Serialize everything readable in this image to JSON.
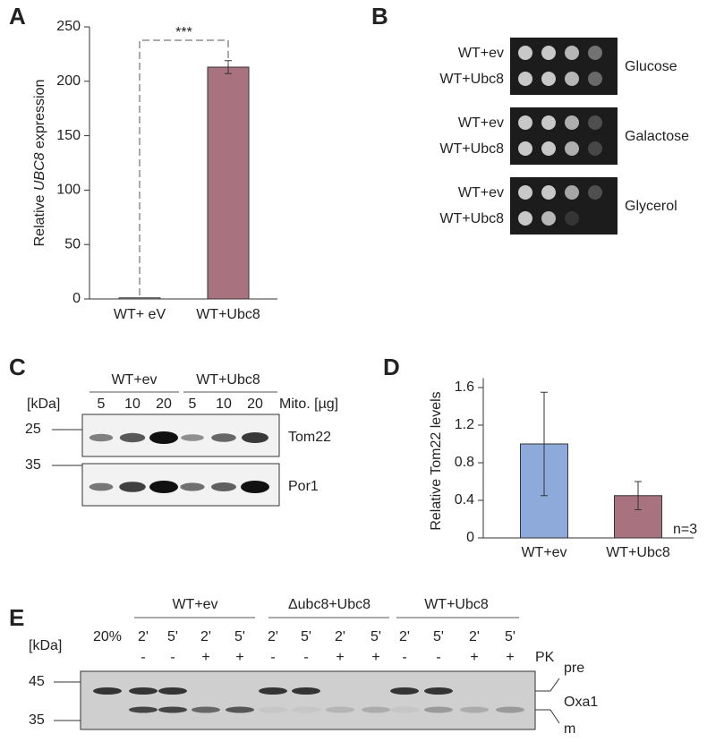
{
  "panel_labels": [
    "A",
    "B",
    "C",
    "D",
    "E"
  ],
  "chart_data": [
    {
      "type": "bar",
      "y_label_parts": [
        "Relative ",
        "UBC8",
        " expression"
      ],
      "categories": [
        "WT+ eV",
        "WT+Ubc8"
      ],
      "values": [
        1,
        213
      ],
      "errors": [
        null,
        6
      ],
      "colors": [
        "#ffffff",
        "#a8737e"
      ],
      "ylim": [
        0,
        250
      ],
      "yticks": [
        0,
        50,
        100,
        150,
        200,
        250
      ],
      "annotation": "***"
    },
    {
      "type": "bar",
      "y_label": "Relative Tom22 levels",
      "categories": [
        "WT+ev",
        "WT+Ubc8"
      ],
      "values": [
        1.0,
        0.45
      ],
      "errors": [
        0.55,
        0.15
      ],
      "colors": [
        "#8eaadb",
        "#a8737e"
      ],
      "ylim": [
        0,
        1.7
      ],
      "yticks": [
        0,
        0.4,
        0.8,
        1.2,
        1.6
      ],
      "annotation": "n=3"
    }
  ],
  "spot_assay": {
    "plates": [
      {
        "medium": "Glucose",
        "strains": [
          "WT+ev",
          "WT+Ubc8"
        ]
      },
      {
        "medium": "Galactose",
        "strains": [
          "WT+ev",
          "WT+Ubc8"
        ]
      },
      {
        "medium": "Glycerol",
        "strains": [
          "WT+ev",
          "WT+Ubc8"
        ]
      }
    ]
  },
  "western": {
    "groups": [
      "WT+ev",
      "WT+Ubc8"
    ],
    "amounts": [
      "5",
      "10",
      "20",
      "5",
      "10",
      "20"
    ],
    "amount_label": "Mito. [µg]",
    "unit": "[kDa]",
    "markers": [
      "25",
      "35"
    ],
    "proteins": [
      "Tom22",
      "Por1"
    ]
  },
  "import_assay": {
    "groups": [
      "WT+ev",
      "Δubc8+Ubc8",
      "WT+Ubc8"
    ],
    "input": "20%",
    "times": [
      "2'",
      "5'",
      "2'",
      "5'",
      "2'",
      "5'",
      "2'",
      "5'",
      "2'",
      "5'",
      "2'",
      "5'"
    ],
    "pk": [
      "-",
      "-",
      "+",
      "+",
      "-",
      "-",
      "+",
      "+",
      "-",
      "-",
      "+",
      "+"
    ],
    "pk_label": "PK",
    "unit": "[kDa]",
    "markers": [
      "45",
      "35"
    ],
    "bands": [
      "pre",
      "Oxa1",
      "m"
    ]
  }
}
